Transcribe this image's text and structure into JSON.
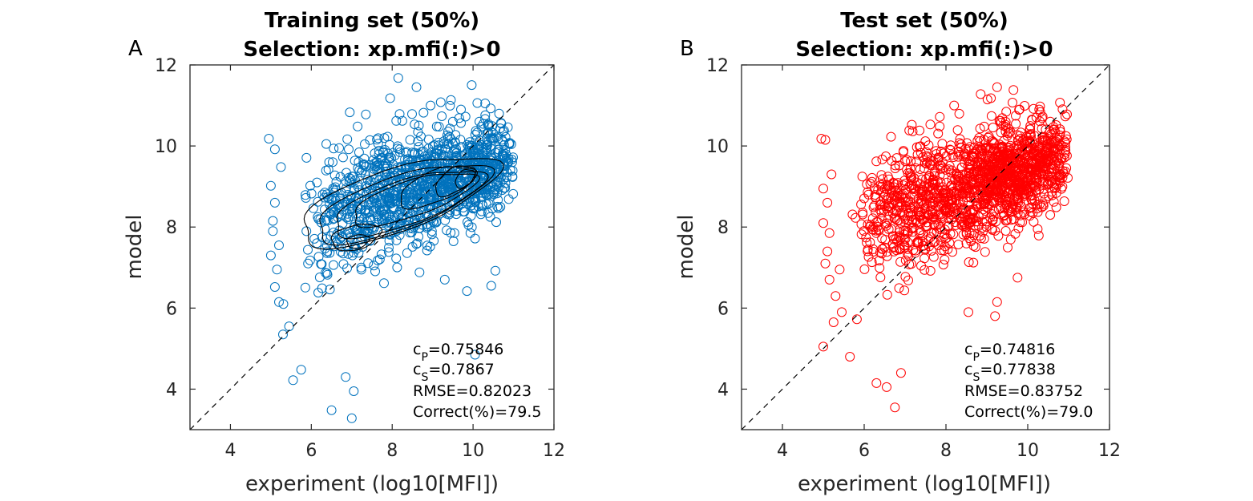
{
  "chart_data": [
    {
      "type": "scatter",
      "panel_letter": "A",
      "title_line1": "Training set (50%)",
      "title_line2": "Selection: xp.mfi(:)>0",
      "xlabel": "experiment (log10[MFI])",
      "ylabel": "model",
      "xlim": [
        3,
        12
      ],
      "ylim": [
        3,
        12
      ],
      "xticks": [
        4,
        6,
        8,
        10,
        12
      ],
      "yticks": [
        4,
        6,
        8,
        10,
        12
      ],
      "marker": "open-circle",
      "color": "#0072BD",
      "diagonal": "dashed y=x",
      "contours": true,
      "contour_color": "#000000",
      "stats": {
        "cP": "=0.75846",
        "cS": "=0.7867",
        "rmse": "RMSE=0.82023",
        "correct": "Correct(%)=79.5"
      },
      "outliers": [
        [
          8.15,
          11.68
        ],
        [
          8.6,
          11.45
        ],
        [
          7.35,
          10.78
        ],
        [
          7.95,
          11.18
        ],
        [
          8.1,
          10.62
        ],
        [
          4.95,
          10.18
        ],
        [
          5.1,
          9.92
        ],
        [
          5.25,
          9.48
        ],
        [
          5.0,
          9.02
        ],
        [
          5.1,
          8.6
        ],
        [
          5.05,
          8.15
        ],
        [
          5.05,
          7.9
        ],
        [
          5.2,
          7.55
        ],
        [
          5.0,
          7.3
        ],
        [
          5.15,
          6.95
        ],
        [
          5.1,
          6.52
        ],
        [
          5.2,
          6.15
        ],
        [
          5.3,
          5.35
        ],
        [
          5.45,
          5.55
        ],
        [
          5.55,
          4.22
        ],
        [
          5.75,
          4.48
        ],
        [
          6.5,
          3.48
        ],
        [
          7.0,
          3.28
        ],
        [
          7.05,
          3.95
        ],
        [
          6.85,
          4.3
        ],
        [
          10.05,
          4.85
        ],
        [
          9.85,
          6.42
        ],
        [
          10.55,
          6.92
        ],
        [
          10.45,
          6.55
        ],
        [
          9.3,
          6.7
        ],
        [
          10.85,
          9.6
        ],
        [
          10.9,
          10.05
        ],
        [
          10.7,
          10.55
        ],
        [
          9.2,
          11.08
        ],
        [
          9.7,
          10.9
        ],
        [
          8.95,
          11.0
        ],
        [
          10.3,
          11.05
        ],
        [
          9.5,
          10.6
        ],
        [
          10.6,
          8.5
        ]
      ]
    },
    {
      "type": "scatter",
      "panel_letter": "B",
      "title_line1": "Test set (50%)",
      "title_line2": "Selection: xp.mfi(:)>0",
      "xlabel": "experiment (log10[MFI])",
      "ylabel": "model",
      "xlim": [
        3,
        12
      ],
      "ylim": [
        3,
        12
      ],
      "xticks": [
        4,
        6,
        8,
        10,
        12
      ],
      "yticks": [
        4,
        6,
        8,
        10,
        12
      ],
      "marker": "open-circle",
      "color": "#FF0000",
      "diagonal": "dashed y=x",
      "contours": false,
      "stats": {
        "cP": "=0.74816",
        "cS": "=0.77838",
        "rmse": "RMSE=0.83752",
        "correct": "Correct(%)=79.0"
      },
      "outliers": [
        [
          9.25,
          11.45
        ],
        [
          9.65,
          11.38
        ],
        [
          8.85,
          11.28
        ],
        [
          8.2,
          11.0
        ],
        [
          7.85,
          10.72
        ],
        [
          9.1,
          11.18
        ],
        [
          4.95,
          10.18
        ],
        [
          5.05,
          10.15
        ],
        [
          5.2,
          9.3
        ],
        [
          5.0,
          8.95
        ],
        [
          5.1,
          8.6
        ],
        [
          5.0,
          8.1
        ],
        [
          5.15,
          7.85
        ],
        [
          5.1,
          7.4
        ],
        [
          5.05,
          7.1
        ],
        [
          5.15,
          6.7
        ],
        [
          5.4,
          6.95
        ],
        [
          5.3,
          6.3
        ],
        [
          5.45,
          5.9
        ],
        [
          5.25,
          5.65
        ],
        [
          5.0,
          5.05
        ],
        [
          5.65,
          4.8
        ],
        [
          6.3,
          4.15
        ],
        [
          6.55,
          4.05
        ],
        [
          6.75,
          3.55
        ],
        [
          9.2,
          5.8
        ],
        [
          9.25,
          6.15
        ],
        [
          9.75,
          6.75
        ],
        [
          10.55,
          8.3
        ],
        [
          10.85,
          9.0
        ],
        [
          10.8,
          10.35
        ],
        [
          10.55,
          10.6
        ],
        [
          9.8,
          10.9
        ],
        [
          10.1,
          10.65
        ],
        [
          9.4,
          10.5
        ],
        [
          6.9,
          4.4
        ],
        [
          8.55,
          5.9
        ]
      ]
    }
  ]
}
